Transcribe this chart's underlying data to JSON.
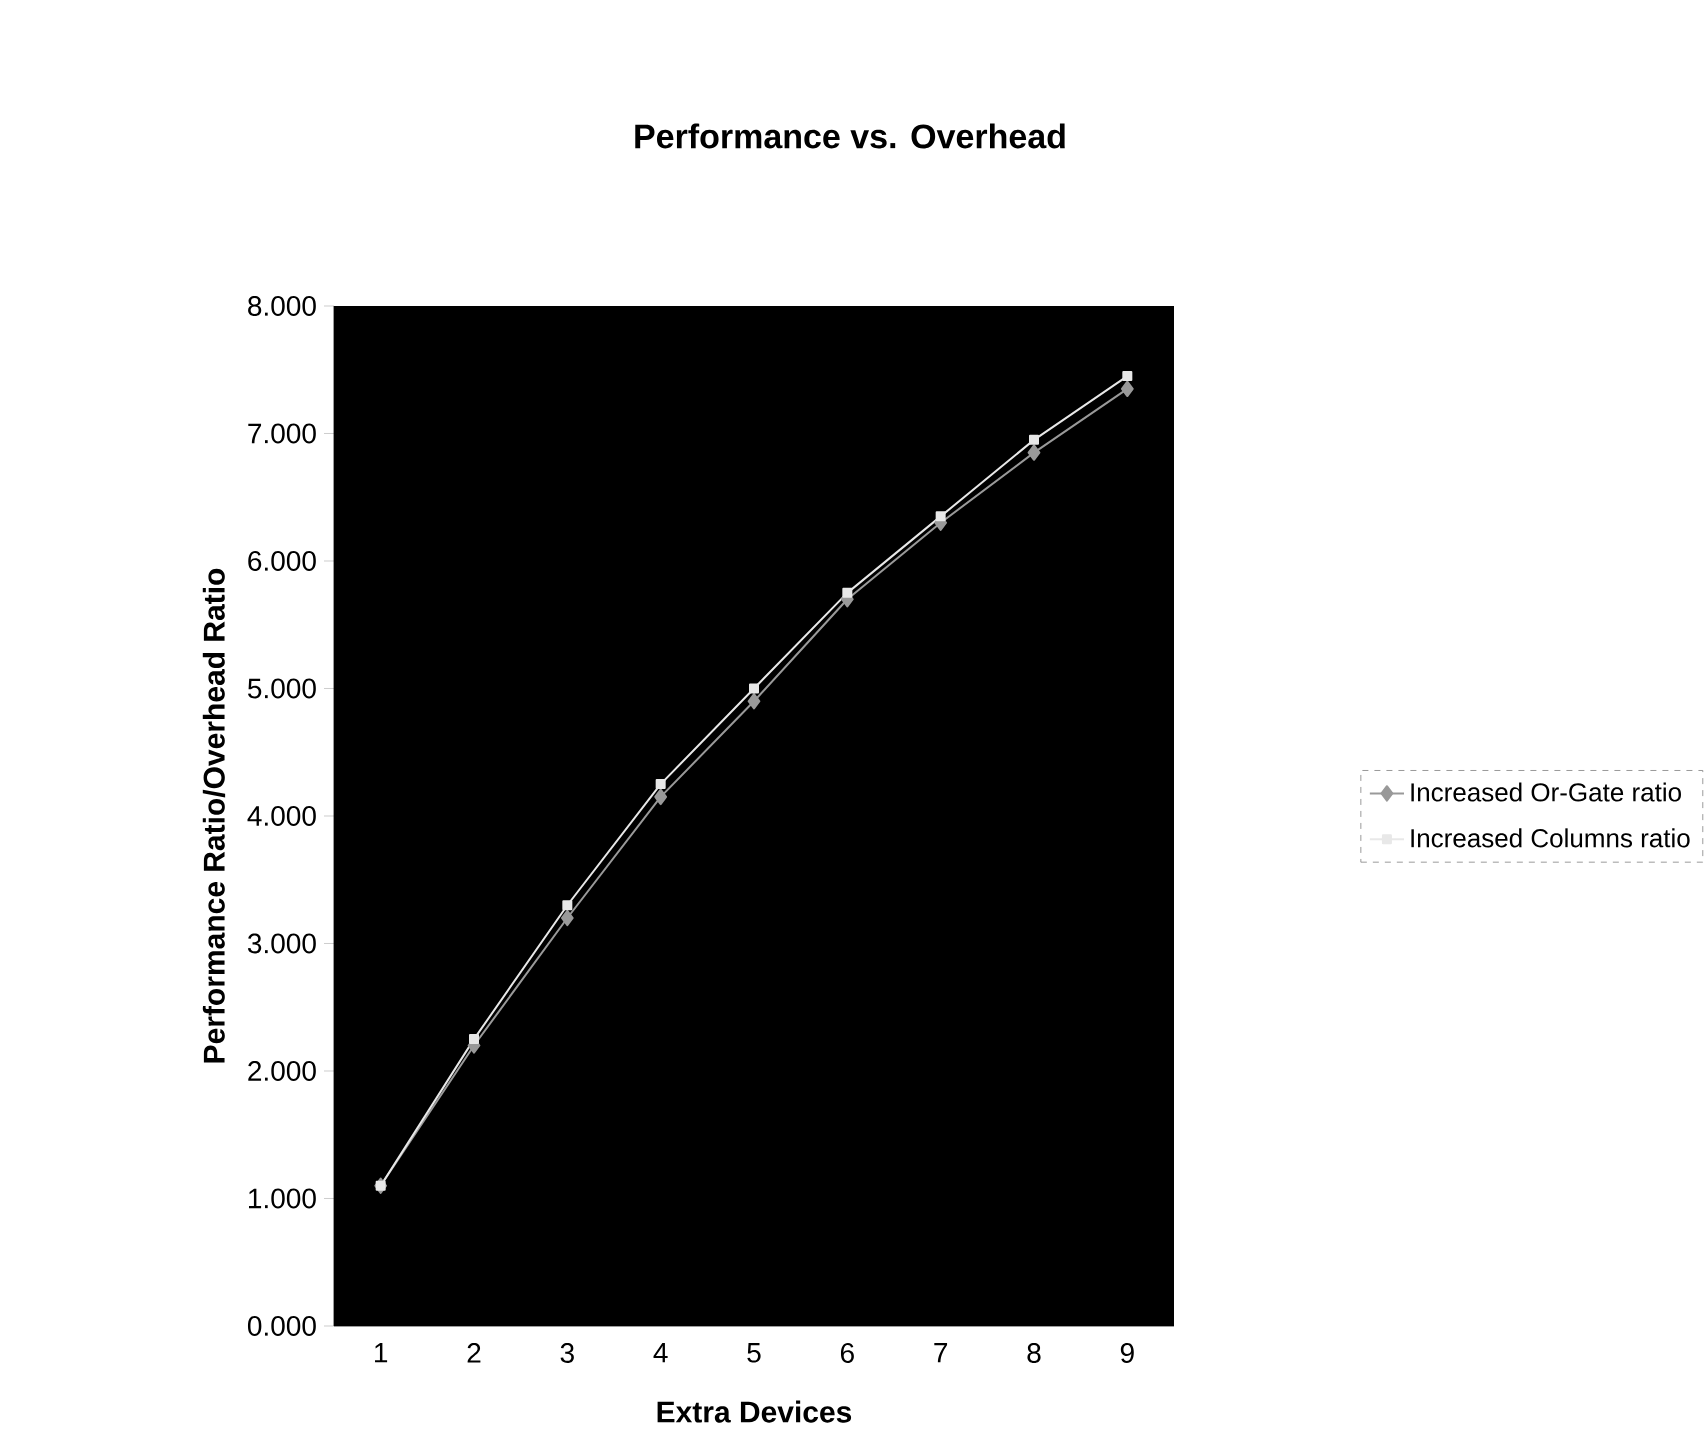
{
  "chart_data": {
    "type": "line",
    "title": "Performance vs. Overhead",
    "xlabel": "Extra Devices",
    "ylabel": "Performance Ratio/Overhead Ratio",
    "categories": [
      "1",
      "2",
      "3",
      "4",
      "5",
      "6",
      "7",
      "8",
      "9"
    ],
    "series": [
      {
        "name": "Increased Or-Gate ratio",
        "color": "#999999",
        "marker": "diamond",
        "values": [
          1.1,
          2.2,
          3.2,
          4.15,
          4.9,
          5.7,
          6.3,
          6.85,
          7.35
        ]
      },
      {
        "name": "Increased Columns ratio",
        "color": "#e8e8e8",
        "marker": "square",
        "values": [
          1.1,
          2.25,
          3.3,
          4.25,
          5.0,
          5.75,
          6.35,
          6.95,
          7.45
        ]
      }
    ],
    "ylim": [
      0,
      8
    ],
    "yticks": [
      {
        "value": 0,
        "label": "0.000"
      },
      {
        "value": 1,
        "label": "1.000"
      },
      {
        "value": 2,
        "label": "2.000"
      },
      {
        "value": 3,
        "label": "3.000"
      },
      {
        "value": 4,
        "label": "4.000"
      },
      {
        "value": 5,
        "label": "5.000"
      },
      {
        "value": 6,
        "label": "6.000"
      },
      {
        "value": 7,
        "label": "7.000"
      },
      {
        "value": 8,
        "label": "8.000"
      }
    ],
    "legend": "right",
    "grid": false,
    "line_style": "solid"
  }
}
